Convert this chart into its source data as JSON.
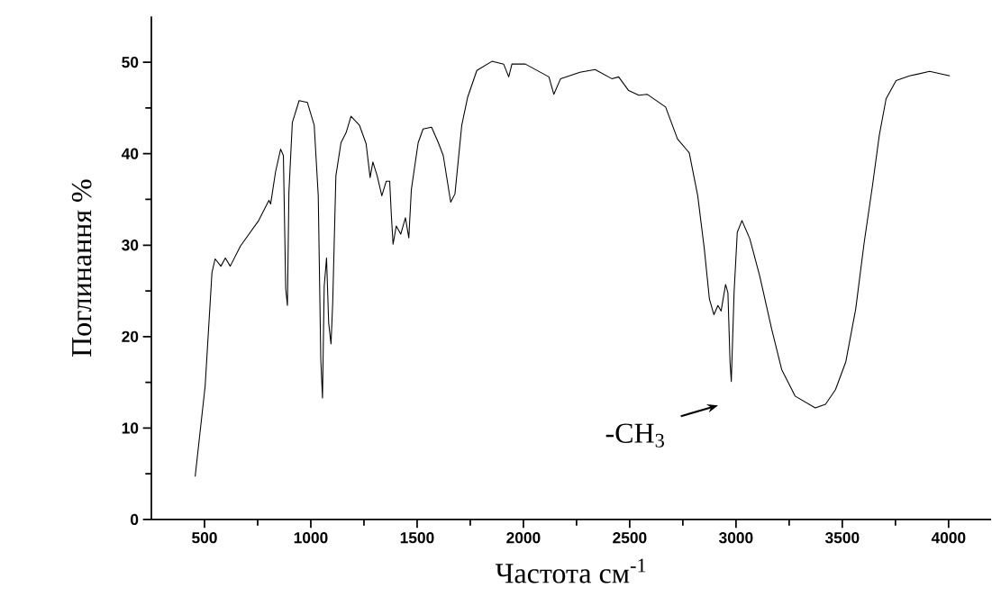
{
  "chart_data": {
    "type": "line",
    "xlabel": "Частота см$^{-1}$",
    "ylabel": "Поглинання %",
    "color": "#000000",
    "marker": "none",
    "line_style": "solid",
    "x": [
      456,
      503,
      535,
      550,
      577,
      598,
      621,
      669,
      755,
      803,
      811,
      834,
      858,
      871,
      882,
      890,
      897,
      913,
      945,
      984,
      1016,
      1035,
      1047,
      1055,
      1063,
      1074,
      1084,
      1095,
      1103,
      1118,
      1142,
      1166,
      1189,
      1229,
      1260,
      1279,
      1292,
      1312,
      1334,
      1355,
      1371,
      1379,
      1387,
      1402,
      1423,
      1445,
      1461,
      1473,
      1505,
      1528,
      1568,
      1600,
      1623,
      1658,
      1678,
      1710,
      1738,
      1781,
      1852,
      1907,
      1931,
      1946,
      2009,
      2120,
      2143,
      2175,
      2266,
      2337,
      2416,
      2448,
      2495,
      2543,
      2582,
      2669,
      2725,
      2780,
      2820,
      2851,
      2875,
      2896,
      2915,
      2930,
      2951,
      2962,
      2972,
      2978,
      2991,
      3006,
      3028,
      3065,
      3112,
      3168,
      3215,
      3278,
      3373,
      3421,
      3468,
      3516,
      3563,
      3603,
      3642,
      3674,
      3706,
      3753,
      3816,
      3911,
      4006
    ],
    "values": [
      4.7,
      14.6,
      27.0,
      28.5,
      27.7,
      28.6,
      27.7,
      29.9,
      32.7,
      34.9,
      34.5,
      38.0,
      40.5,
      39.8,
      25.2,
      23.4,
      35.8,
      43.4,
      45.8,
      45.6,
      43.1,
      35.4,
      17.5,
      13.3,
      25.5,
      28.6,
      21.5,
      19.2,
      23.7,
      37.6,
      41.2,
      42.3,
      44.1,
      43.1,
      41.1,
      37.4,
      39.1,
      37.6,
      35.4,
      37.0,
      37.0,
      33.2,
      30.1,
      32.1,
      31.2,
      33.0,
      30.8,
      36.1,
      41.2,
      42.7,
      42.9,
      41.2,
      39.8,
      34.7,
      35.6,
      43.1,
      46.2,
      49.1,
      50.1,
      49.8,
      48.4,
      49.8,
      49.8,
      48.4,
      46.5,
      48.2,
      48.9,
      49.2,
      48.2,
      48.4,
      46.9,
      46.4,
      46.5,
      45.1,
      41.6,
      40.1,
      35.4,
      29.6,
      24.1,
      22.4,
      23.4,
      22.8,
      25.7,
      24.8,
      17.2,
      15.1,
      24.8,
      31.4,
      32.7,
      30.7,
      26.6,
      20.8,
      16.4,
      13.5,
      12.2,
      12.6,
      14.2,
      17.2,
      23.0,
      30.3,
      36.5,
      42.0,
      46.0,
      48.0,
      48.5,
      49.0,
      48.5
    ],
    "xlim": [
      250,
      4200
    ],
    "ylim": [
      0,
      55
    ],
    "xticks": [
      500,
      1000,
      1500,
      2000,
      2500,
      3000,
      3500,
      4000
    ],
    "yticks": [
      0,
      10,
      20,
      30,
      40,
      50
    ],
    "annotations": [
      {
        "text": "-CH$_{3}$",
        "x": 2978,
        "y": 15.1
      }
    ]
  }
}
